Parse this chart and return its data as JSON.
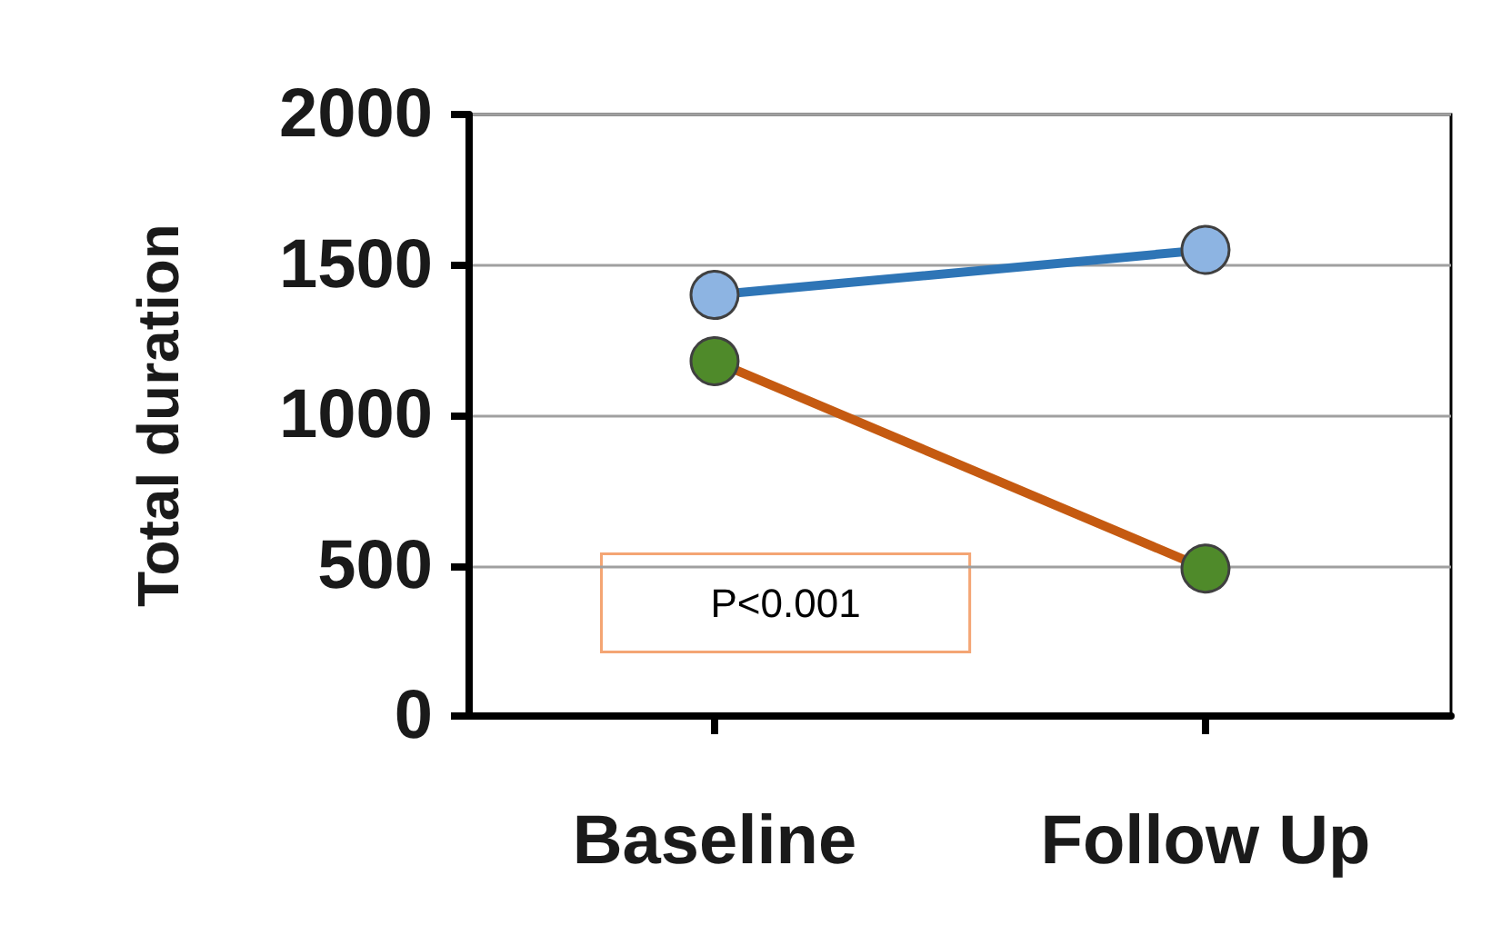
{
  "chart_data": {
    "type": "line",
    "ylabel": "Total duration",
    "categories": [
      "Baseline",
      "Follow Up"
    ],
    "series": [
      {
        "color": "#2e75b6",
        "values": [
          1400,
          1550
        ]
      },
      {
        "color": "#c55a11",
        "values": [
          1180,
          490
        ]
      }
    ],
    "ylim": [
      0,
      2000
    ],
    "yticks": [
      0,
      500,
      1000,
      1500,
      2000
    ],
    "grid": "y",
    "marker": "circle",
    "annotations": [
      "P<0.001"
    ]
  }
}
